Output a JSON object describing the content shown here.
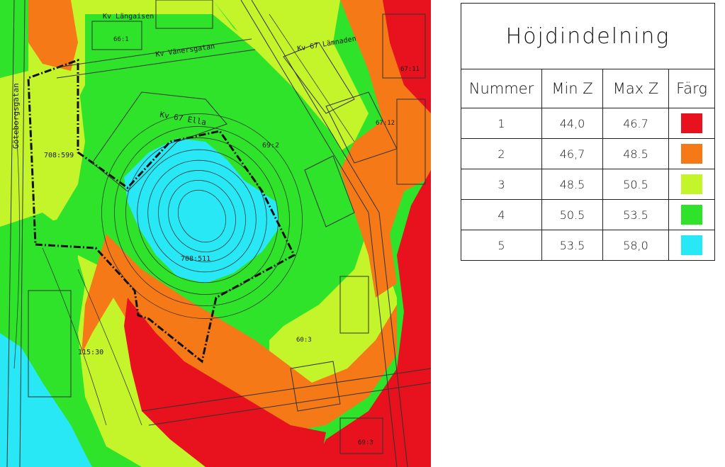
{
  "map": {
    "labels": {
      "kv_top": "Kv Längaisen",
      "kv_top_n": "66:1",
      "street_top": "Kv Vänersgatan",
      "kv_top_right": "Kv 67 Lämnaden",
      "kv_center": "Kv 67 Ella",
      "lot_1": "708:599",
      "lot_2": "69:2",
      "lot_3": "708:511",
      "lot_4": "115:30",
      "lot_5": "60:3",
      "lot_6": "67:11",
      "lot_7": "67:12",
      "lot_8": "69:3",
      "street_left": "Göteborgsgatan"
    }
  },
  "legend": {
    "title": "Höjdindelning",
    "headers": [
      "Nummer",
      "Min Z",
      "Max Z",
      "Färg"
    ],
    "rows": [
      {
        "num": "1",
        "min": "44,0",
        "max": "46.7",
        "color": "#e8111e"
      },
      {
        "num": "2",
        "min": "46,7",
        "max": "48.5",
        "color": "#f57a17"
      },
      {
        "num": "3",
        "min": "48.5",
        "max": "50.5",
        "color": "#c4f52a"
      },
      {
        "num": "4",
        "min": "50.5",
        "max": "53.5",
        "color": "#2ee32a"
      },
      {
        "num": "5",
        "min": "53.5",
        "max": "58,0",
        "color": "#28e8f5"
      }
    ]
  }
}
